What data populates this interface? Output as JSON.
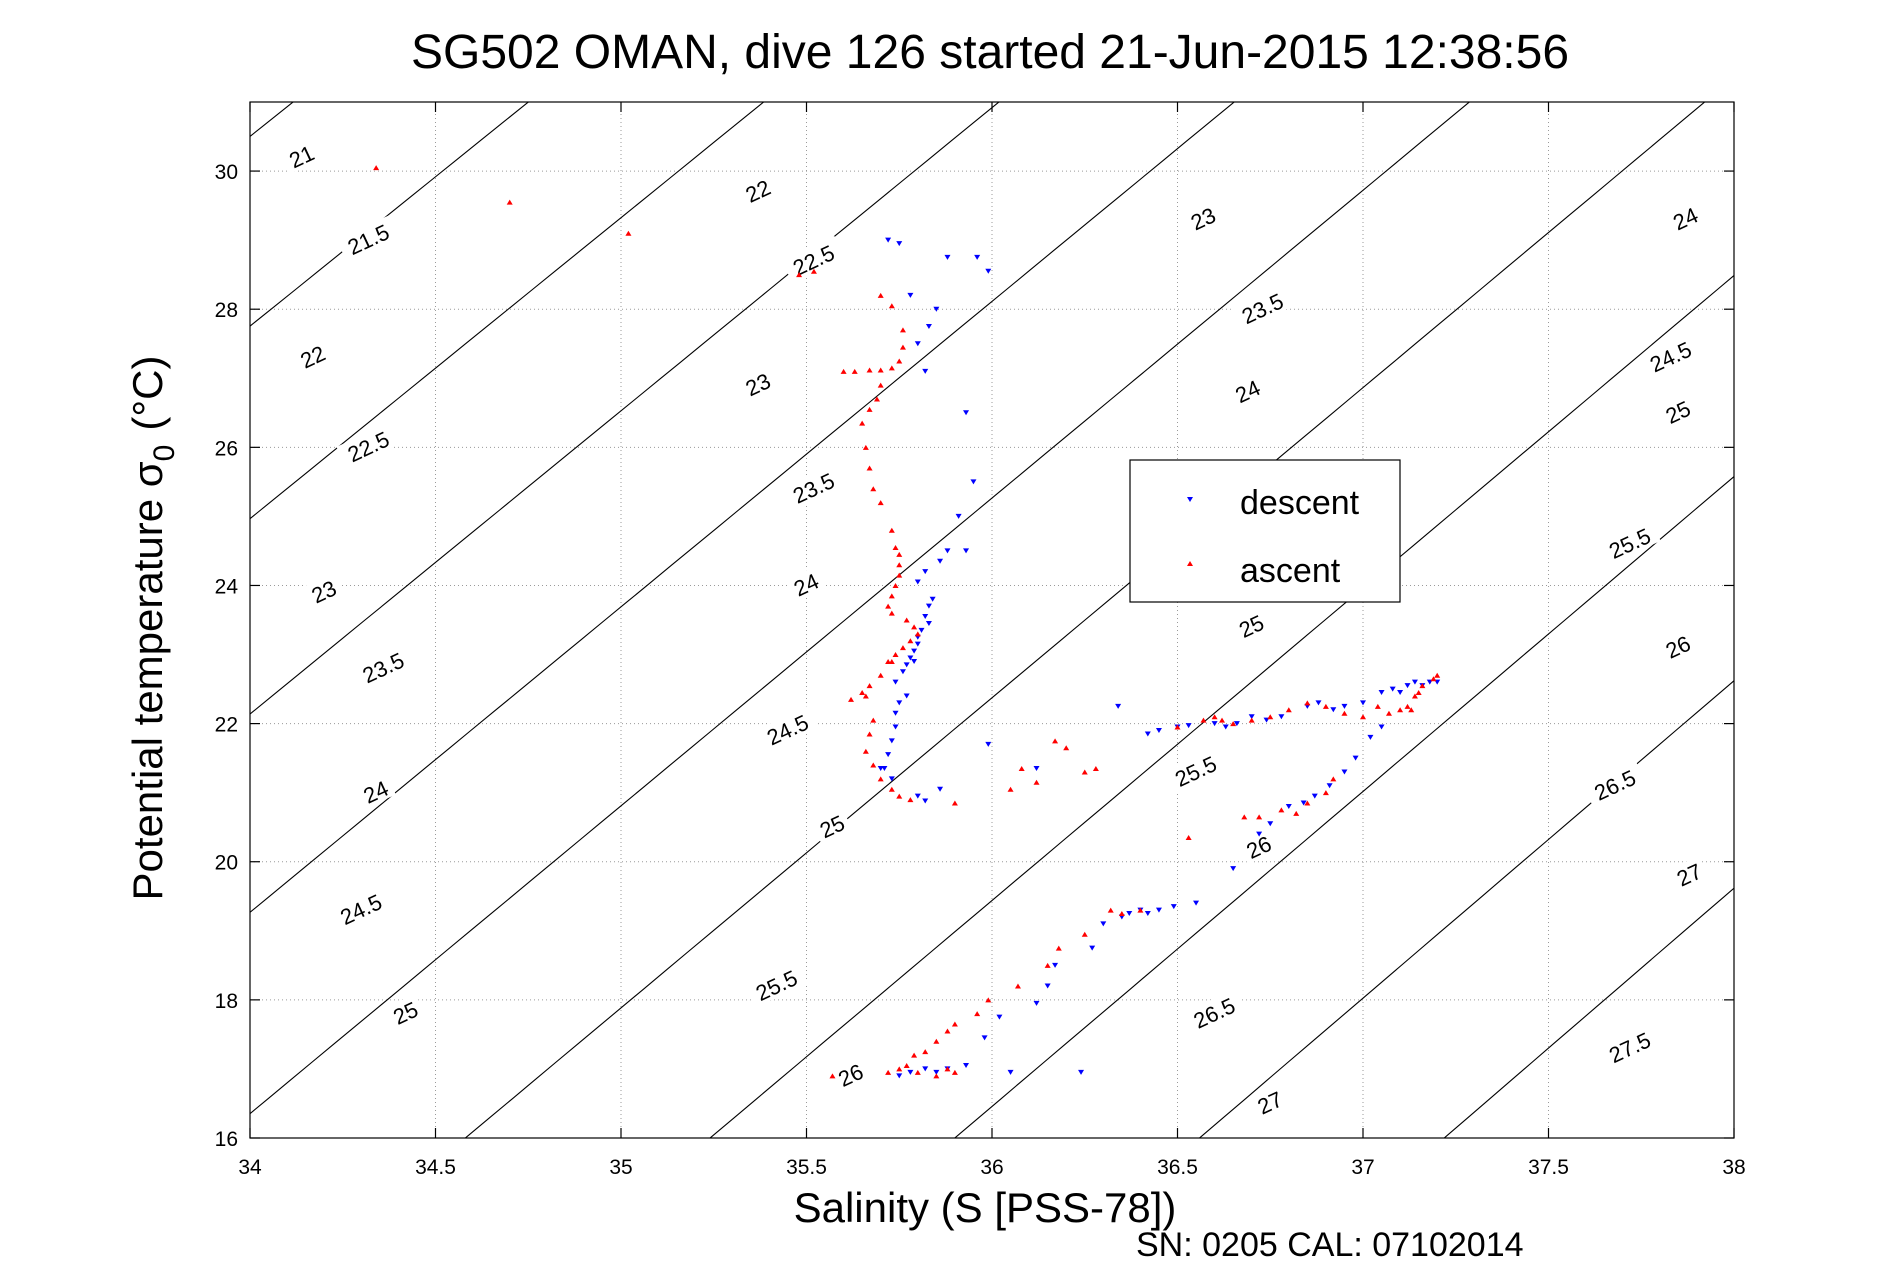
{
  "chart_data": {
    "type": "scatter",
    "title": "SG502 OMAN, dive 126 started 21-Jun-2015 12:38:56",
    "xlabel": "Salinity (S [PSS-78])",
    "ylabel_main": "Potential temperature σ",
    "ylabel_sub": "0",
    "ylabel_unit": "(°C)",
    "footer": "SN: 0205  CAL: 07102014",
    "xlim": [
      34,
      38
    ],
    "ylim": [
      16,
      31
    ],
    "x_ticks": [
      34,
      34.5,
      35,
      35.5,
      36,
      36.5,
      37,
      37.5,
      38
    ],
    "x_tick_labels": [
      "34",
      "34.5",
      "35",
      "35.5",
      "36",
      "36.5",
      "37",
      "37.5",
      "38"
    ],
    "y_ticks": [
      16,
      18,
      20,
      22,
      24,
      26,
      28,
      30
    ],
    "y_tick_labels": [
      "16",
      "18",
      "20",
      "22",
      "24",
      "26",
      "28",
      "30"
    ],
    "grid": true,
    "legend_position": "center-right",
    "legend": [
      {
        "label": "descent",
        "color": "#0000ff",
        "marker": "triangle-down"
      },
      {
        "label": "ascent",
        "color": "#ff0000",
        "marker": "triangle-up"
      }
    ],
    "density_contours": [
      {
        "level": 21,
        "label": "21"
      },
      {
        "level": 21.5,
        "label": "21.5"
      },
      {
        "level": 22,
        "label": "22"
      },
      {
        "level": 22.5,
        "label": "22.5"
      },
      {
        "level": 23,
        "label": "23"
      },
      {
        "level": 23.5,
        "label": "23.5"
      },
      {
        "level": 24,
        "label": "24"
      },
      {
        "level": 24.5,
        "label": "24.5"
      },
      {
        "level": 25,
        "label": "25"
      },
      {
        "level": 25.5,
        "label": "25.5"
      },
      {
        "level": 26,
        "label": "26"
      },
      {
        "level": 26.5,
        "label": "26.5"
      },
      {
        "level": 27,
        "label": "27"
      },
      {
        "level": 27.5,
        "label": "27.5"
      }
    ],
    "contour_labels": [
      {
        "text": "21",
        "s": 34.14,
        "t": 30.2
      },
      {
        "text": "21.5",
        "s": 34.32,
        "t": 29.0
      },
      {
        "text": "22",
        "s": 35.37,
        "t": 29.7
      },
      {
        "text": "22",
        "s": 34.17,
        "t": 27.3
      },
      {
        "text": "22.5",
        "s": 35.52,
        "t": 28.7
      },
      {
        "text": "22.5",
        "s": 34.32,
        "t": 26.0
      },
      {
        "text": "23",
        "s": 36.57,
        "t": 29.3
      },
      {
        "text": "23",
        "s": 35.37,
        "t": 26.9
      },
      {
        "text": "23",
        "s": 34.2,
        "t": 23.9
      },
      {
        "text": "23.5",
        "s": 36.73,
        "t": 28.0
      },
      {
        "text": "23.5",
        "s": 35.52,
        "t": 25.4
      },
      {
        "text": "23.5",
        "s": 34.36,
        "t": 22.8
      },
      {
        "text": "24",
        "s": 37.87,
        "t": 29.3
      },
      {
        "text": "24",
        "s": 36.69,
        "t": 26.8
      },
      {
        "text": "24",
        "s": 35.5,
        "t": 24.0
      },
      {
        "text": "24",
        "s": 34.34,
        "t": 21.0
      },
      {
        "text": "24.5",
        "s": 37.83,
        "t": 27.3
      },
      {
        "text": "24.5",
        "s": 35.45,
        "t": 21.9
      },
      {
        "text": "24.5",
        "s": 34.3,
        "t": 19.3
      },
      {
        "text": "25",
        "s": 37.85,
        "t": 26.5
      },
      {
        "text": "25",
        "s": 35.57,
        "t": 20.5
      },
      {
        "text": "25",
        "s": 34.42,
        "t": 17.8
      },
      {
        "text": "25",
        "s": 36.7,
        "t": 23.4
      },
      {
        "text": "25.5",
        "s": 37.72,
        "t": 24.6
      },
      {
        "text": "25.5",
        "s": 36.55,
        "t": 21.3
      },
      {
        "text": "25.5",
        "s": 35.42,
        "t": 18.2
      },
      {
        "text": "26",
        "s": 37.85,
        "t": 23.1
      },
      {
        "text": "26",
        "s": 36.72,
        "t": 20.2
      },
      {
        "text": "26",
        "s": 35.62,
        "t": 16.9
      },
      {
        "text": "26.5",
        "s": 37.68,
        "t": 21.1
      },
      {
        "text": "26.5",
        "s": 36.6,
        "t": 17.8
      },
      {
        "text": "27",
        "s": 37.88,
        "t": 19.8
      },
      {
        "text": "27",
        "s": 36.75,
        "t": 16.5
      },
      {
        "text": "27.5",
        "s": 37.72,
        "t": 17.3
      }
    ],
    "series": [
      {
        "name": "descent",
        "color": "#0000ff",
        "marker": "triangle-down",
        "points": [
          [
            35.72,
            29.0
          ],
          [
            35.75,
            28.95
          ],
          [
            35.88,
            28.75
          ],
          [
            35.96,
            28.75
          ],
          [
            35.99,
            28.55
          ],
          [
            35.78,
            28.2
          ],
          [
            35.85,
            28.0
          ],
          [
            35.83,
            27.75
          ],
          [
            35.8,
            27.5
          ],
          [
            35.82,
            27.1
          ],
          [
            35.93,
            26.5
          ],
          [
            35.95,
            25.5
          ],
          [
            35.91,
            25.0
          ],
          [
            35.93,
            24.5
          ],
          [
            35.88,
            24.5
          ],
          [
            35.86,
            24.35
          ],
          [
            35.82,
            24.2
          ],
          [
            35.8,
            24.05
          ],
          [
            35.84,
            23.8
          ],
          [
            35.83,
            23.7
          ],
          [
            35.82,
            23.55
          ],
          [
            35.83,
            23.45
          ],
          [
            35.81,
            23.35
          ],
          [
            35.8,
            23.25
          ],
          [
            35.8,
            23.15
          ],
          [
            35.79,
            23.05
          ],
          [
            35.78,
            22.95
          ],
          [
            35.79,
            22.9
          ],
          [
            35.77,
            22.85
          ],
          [
            35.76,
            22.75
          ],
          [
            35.74,
            22.6
          ],
          [
            35.77,
            22.4
          ],
          [
            35.75,
            22.3
          ],
          [
            35.74,
            22.15
          ],
          [
            35.74,
            21.95
          ],
          [
            35.73,
            21.75
          ],
          [
            35.72,
            21.55
          ],
          [
            35.71,
            21.35
          ],
          [
            35.7,
            21.35
          ],
          [
            35.73,
            21.2
          ],
          [
            35.8,
            20.95
          ],
          [
            35.86,
            21.05
          ],
          [
            35.99,
            21.7
          ],
          [
            36.12,
            21.35
          ],
          [
            36.34,
            22.25
          ],
          [
            36.42,
            21.85
          ],
          [
            36.45,
            21.9
          ],
          [
            36.5,
            21.95
          ],
          [
            36.53,
            21.97
          ],
          [
            36.6,
            22.0
          ],
          [
            36.63,
            21.95
          ],
          [
            36.66,
            22.0
          ],
          [
            36.7,
            22.1
          ],
          [
            36.74,
            22.05
          ],
          [
            36.78,
            22.1
          ],
          [
            36.85,
            22.25
          ],
          [
            36.88,
            22.3
          ],
          [
            36.92,
            22.2
          ],
          [
            36.95,
            22.25
          ],
          [
            37.0,
            22.3
          ],
          [
            37.05,
            22.45
          ],
          [
            37.08,
            22.5
          ],
          [
            37.1,
            22.45
          ],
          [
            37.12,
            22.55
          ],
          [
            37.14,
            22.6
          ],
          [
            37.16,
            22.55
          ],
          [
            37.18,
            22.6
          ],
          [
            37.2,
            22.6
          ],
          [
            37.05,
            21.95
          ],
          [
            37.02,
            21.8
          ],
          [
            36.98,
            21.5
          ],
          [
            36.95,
            21.3
          ],
          [
            36.91,
            21.1
          ],
          [
            36.87,
            20.95
          ],
          [
            36.84,
            20.85
          ],
          [
            36.8,
            20.8
          ],
          [
            36.75,
            20.55
          ],
          [
            36.72,
            20.4
          ],
          [
            36.65,
            19.9
          ],
          [
            36.55,
            19.4
          ],
          [
            36.49,
            19.35
          ],
          [
            36.45,
            19.3
          ],
          [
            36.42,
            19.25
          ],
          [
            36.4,
            19.3
          ],
          [
            36.37,
            19.25
          ],
          [
            36.35,
            19.2
          ],
          [
            36.3,
            19.1
          ],
          [
            36.27,
            18.75
          ],
          [
            36.17,
            18.5
          ],
          [
            36.15,
            18.2
          ],
          [
            36.12,
            17.95
          ],
          [
            36.02,
            17.75
          ],
          [
            35.98,
            17.45
          ],
          [
            35.93,
            17.05
          ],
          [
            35.88,
            17.0
          ],
          [
            35.85,
            16.95
          ],
          [
            35.82,
            17.0
          ],
          [
            35.78,
            16.95
          ],
          [
            35.75,
            16.9
          ],
          [
            36.05,
            16.95
          ],
          [
            36.24,
            16.95
          ],
          [
            35.82,
            20.88
          ]
        ]
      },
      {
        "name": "ascent",
        "color": "#ff0000",
        "marker": "triangle-up",
        "points": [
          [
            34.34,
            30.05
          ],
          [
            34.7,
            29.55
          ],
          [
            35.02,
            29.1
          ],
          [
            35.48,
            28.5
          ],
          [
            35.52,
            28.55
          ],
          [
            35.7,
            28.2
          ],
          [
            35.73,
            28.05
          ],
          [
            35.76,
            27.7
          ],
          [
            35.76,
            27.45
          ],
          [
            35.75,
            27.25
          ],
          [
            35.73,
            27.15
          ],
          [
            35.7,
            27.12
          ],
          [
            35.67,
            27.12
          ],
          [
            35.63,
            27.1
          ],
          [
            35.6,
            27.1
          ],
          [
            35.7,
            26.9
          ],
          [
            35.69,
            26.7
          ],
          [
            35.67,
            26.55
          ],
          [
            35.65,
            26.35
          ],
          [
            35.66,
            26.0
          ],
          [
            35.67,
            25.7
          ],
          [
            35.68,
            25.4
          ],
          [
            35.7,
            25.2
          ],
          [
            35.73,
            24.8
          ],
          [
            35.74,
            24.55
          ],
          [
            35.75,
            24.45
          ],
          [
            35.75,
            24.3
          ],
          [
            35.75,
            24.15
          ],
          [
            35.74,
            24.0
          ],
          [
            35.73,
            23.85
          ],
          [
            35.72,
            23.7
          ],
          [
            35.73,
            23.6
          ],
          [
            35.77,
            23.5
          ],
          [
            35.79,
            23.4
          ],
          [
            35.8,
            23.3
          ],
          [
            35.78,
            23.2
          ],
          [
            35.76,
            23.1
          ],
          [
            35.74,
            23.0
          ],
          [
            35.72,
            22.9
          ],
          [
            35.73,
            22.9
          ],
          [
            35.7,
            22.7
          ],
          [
            35.67,
            22.55
          ],
          [
            35.65,
            22.45
          ],
          [
            35.62,
            22.35
          ],
          [
            35.66,
            22.4
          ],
          [
            35.68,
            22.05
          ],
          [
            35.67,
            21.85
          ],
          [
            35.66,
            21.6
          ],
          [
            35.68,
            21.4
          ],
          [
            35.7,
            21.2
          ],
          [
            35.73,
            21.05
          ],
          [
            35.75,
            20.95
          ],
          [
            35.78,
            20.9
          ],
          [
            35.9,
            20.85
          ],
          [
            36.05,
            21.05
          ],
          [
            36.08,
            21.35
          ],
          [
            36.12,
            21.15
          ],
          [
            36.17,
            21.75
          ],
          [
            36.2,
            21.65
          ],
          [
            36.25,
            21.3
          ],
          [
            36.28,
            21.35
          ],
          [
            36.5,
            21.95
          ],
          [
            36.57,
            22.05
          ],
          [
            36.6,
            22.1
          ],
          [
            36.62,
            22.05
          ],
          [
            36.65,
            22.0
          ],
          [
            36.7,
            22.05
          ],
          [
            36.75,
            22.1
          ],
          [
            36.8,
            22.2
          ],
          [
            36.85,
            22.3
          ],
          [
            36.9,
            22.25
          ],
          [
            36.95,
            22.15
          ],
          [
            37.0,
            22.1
          ],
          [
            37.04,
            22.25
          ],
          [
            37.07,
            22.15
          ],
          [
            37.1,
            22.2
          ],
          [
            37.12,
            22.25
          ],
          [
            37.14,
            22.4
          ],
          [
            37.16,
            22.55
          ],
          [
            37.19,
            22.65
          ],
          [
            37.2,
            22.7
          ],
          [
            37.15,
            22.45
          ],
          [
            37.13,
            22.2
          ],
          [
            36.92,
            21.2
          ],
          [
            36.9,
            21.0
          ],
          [
            36.85,
            20.85
          ],
          [
            36.82,
            20.7
          ],
          [
            36.78,
            20.75
          ],
          [
            36.72,
            20.65
          ],
          [
            36.68,
            20.65
          ],
          [
            36.53,
            20.35
          ],
          [
            36.4,
            19.3
          ],
          [
            36.35,
            19.25
          ],
          [
            36.32,
            19.3
          ],
          [
            36.25,
            18.95
          ],
          [
            36.18,
            18.75
          ],
          [
            36.15,
            18.5
          ],
          [
            36.07,
            18.2
          ],
          [
            35.99,
            18.0
          ],
          [
            35.96,
            17.8
          ],
          [
            35.9,
            17.65
          ],
          [
            35.88,
            17.55
          ],
          [
            35.85,
            17.4
          ],
          [
            35.82,
            17.25
          ],
          [
            35.79,
            17.2
          ],
          [
            35.77,
            17.05
          ],
          [
            35.72,
            16.95
          ],
          [
            35.75,
            17.0
          ],
          [
            35.8,
            16.95
          ],
          [
            35.85,
            16.9
          ],
          [
            35.88,
            17.0
          ],
          [
            35.9,
            16.95
          ],
          [
            35.57,
            16.9
          ]
        ]
      }
    ]
  }
}
